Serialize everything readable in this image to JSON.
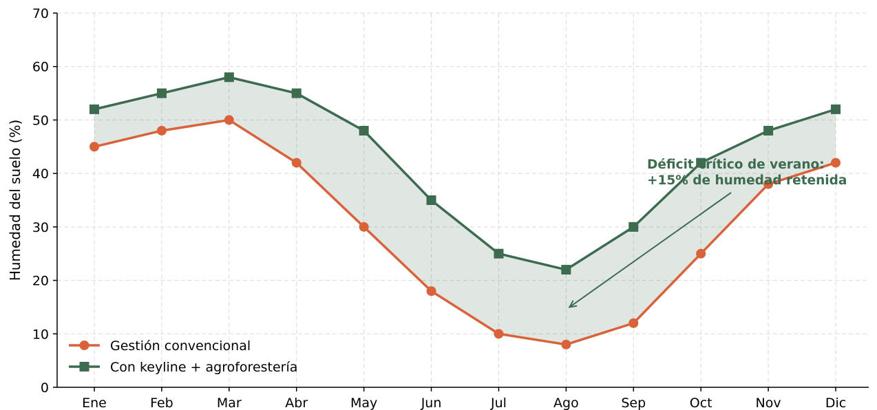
{
  "chart_data": {
    "type": "line",
    "title": "",
    "xlabel": "",
    "ylabel": "Humedad del suelo (%)",
    "categories": [
      "Ene",
      "Feb",
      "Mar",
      "Abr",
      "May",
      "Jun",
      "Jul",
      "Ago",
      "Sep",
      "Oct",
      "Nov",
      "Dic"
    ],
    "ylim": [
      0,
      70
    ],
    "yticks": [
      0,
      10,
      20,
      30,
      40,
      50,
      60,
      70
    ],
    "grid": true,
    "legend_position": "lower-left",
    "fill_between_series": true,
    "series": [
      {
        "name": "Gestión convencional",
        "marker": "circle",
        "color": "#d9623b",
        "values": [
          45,
          48,
          50,
          42,
          30,
          18,
          10,
          8,
          12,
          25,
          38,
          42
        ]
      },
      {
        "name": "Con keyline + agroforestería",
        "marker": "square",
        "color": "#3d6b4f",
        "values": [
          52,
          55,
          58,
          55,
          48,
          35,
          25,
          22,
          30,
          42,
          48,
          52
        ]
      }
    ],
    "fill_color": "#3d6b4f",
    "annotation": {
      "lines": [
        "Déficit crítico de verano:",
        "+15% de humedad retenida"
      ],
      "color": "#3d6b4f",
      "arrow_target": {
        "category": "Ago",
        "value": 15
      }
    }
  }
}
